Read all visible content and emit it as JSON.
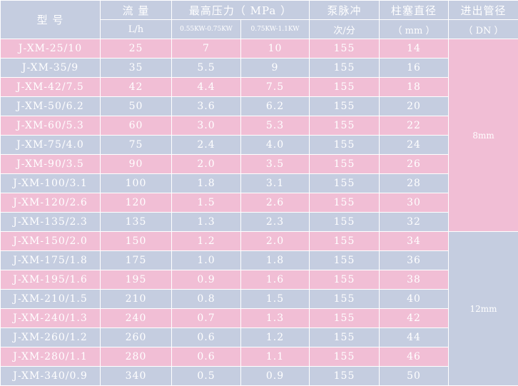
{
  "header": {
    "model": "型 号",
    "flow": "流 量",
    "pressure": "最高压力（ MPa ）",
    "pulse": "泵脉冲",
    "plunger": "柱塞直径",
    "port": "进出管径",
    "flow_unit": "L/h",
    "p1": "0.55KW-0.75KW",
    "p2": "0.75KW-1.1KW",
    "pulse_unit": "次/分",
    "plunger_unit": "（ mm ）",
    "port_unit": "（ DN ）"
  },
  "dn_groups": [
    "8mm",
    "12mm"
  ],
  "rows": [
    {
      "model": "J-XM-25/10",
      "flow": "25",
      "p1": "7",
      "p2": "10",
      "pulse": "155",
      "dia": "14"
    },
    {
      "model": "J-XM-35/9",
      "flow": "35",
      "p1": "5.5",
      "p2": "9",
      "pulse": "155",
      "dia": "16"
    },
    {
      "model": "J-XM-42/7.5",
      "flow": "42",
      "p1": "4.4",
      "p2": "7.5",
      "pulse": "155",
      "dia": "18"
    },
    {
      "model": "J-XM-50/6.2",
      "flow": "50",
      "p1": "3.6",
      "p2": "6.2",
      "pulse": "155",
      "dia": "20"
    },
    {
      "model": "J-XM-60/5.3",
      "flow": "60",
      "p1": "3.0",
      "p2": "5.3",
      "pulse": "155",
      "dia": "22"
    },
    {
      "model": "J-XM-75/4.0",
      "flow": "75",
      "p1": "2.4",
      "p2": "4.0",
      "pulse": "155",
      "dia": "24"
    },
    {
      "model": "J-XM-90/3.5",
      "flow": "90",
      "p1": "2.0",
      "p2": "3.5",
      "pulse": "155",
      "dia": "26"
    },
    {
      "model": "J-XM-100/3.1",
      "flow": "100",
      "p1": "1.8",
      "p2": "3.1",
      "pulse": "155",
      "dia": "28"
    },
    {
      "model": "J-XM-120/2.6",
      "flow": "120",
      "p1": "1.5",
      "p2": "2.6",
      "pulse": "155",
      "dia": "30"
    },
    {
      "model": "J-XM-135/2.3",
      "flow": "135",
      "p1": "1.3",
      "p2": "2.3",
      "pulse": "155",
      "dia": "32"
    },
    {
      "model": "J-XM-150/2.0",
      "flow": "150",
      "p1": "1.2",
      "p2": "2.0",
      "pulse": "155",
      "dia": "34"
    },
    {
      "model": "J-XM-175/1.8",
      "flow": "175",
      "p1": "1.0",
      "p2": "1.8",
      "pulse": "155",
      "dia": "36"
    },
    {
      "model": "J-XM-195/1.6",
      "flow": "195",
      "p1": "0.9",
      "p2": "1.6",
      "pulse": "155",
      "dia": "38"
    },
    {
      "model": "J-XM-210/1.5",
      "flow": "210",
      "p1": "0.8",
      "p2": "1.5",
      "pulse": "155",
      "dia": "40"
    },
    {
      "model": "J-XM-240/1.3",
      "flow": "240",
      "p1": "0.7",
      "p2": "1.3",
      "pulse": "155",
      "dia": "42"
    },
    {
      "model": "J-XM-260/1.2",
      "flow": "260",
      "p1": "0.6",
      "p2": "1.2",
      "pulse": "155",
      "dia": "44"
    },
    {
      "model": "J-XM-280/1.1",
      "flow": "280",
      "p1": "0.6",
      "p2": "1.1",
      "pulse": "155",
      "dia": "46"
    },
    {
      "model": "J-XM-340/0.9",
      "flow": "340",
      "p1": "0.5",
      "p2": "0.9",
      "pulse": "155",
      "dia": "50"
    }
  ],
  "colors": {
    "pink_row": "#f1bed5",
    "blue_row": "#c5cde0",
    "text": "#ffffff"
  }
}
